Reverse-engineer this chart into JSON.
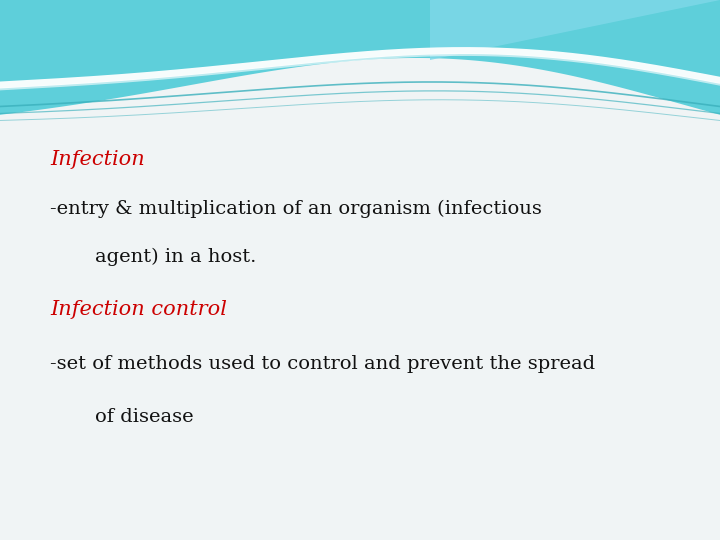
{
  "bg_color": "#f0f4f5",
  "wave_main_color": "#5ecfda",
  "wave_right_color": "#7dd8e8",
  "title1": "Infection",
  "title1_color": "#cc0000",
  "title2": "Infection control",
  "title2_color": "#cc0000",
  "line1": "-entry & multiplication of an organism (infectious",
  "line2": "agent) in a host.",
  "line3": "-set of methods used to control and prevent the spread",
  "line4": "of disease",
  "text_color": "#111111",
  "font_size_title": 15,
  "font_size_body": 14
}
